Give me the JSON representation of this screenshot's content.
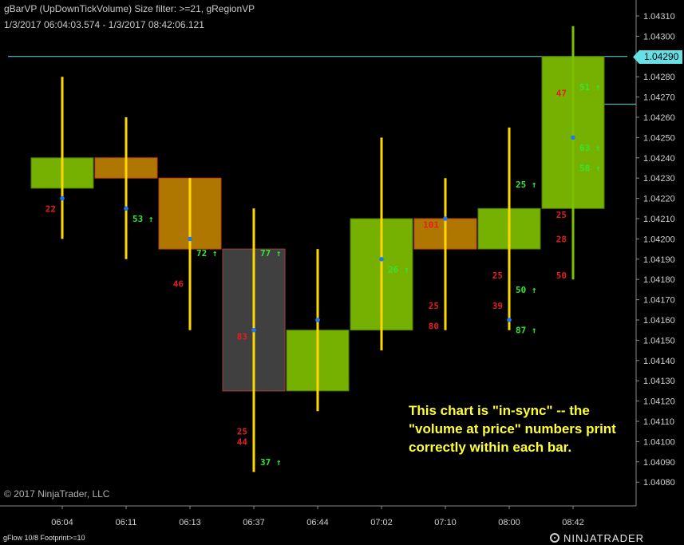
{
  "header": {
    "title": "gBarVP (UpDownTickVolume) Size filter: >=21, gRegionVP",
    "range": "1/3/2017 06:04:03.574 - 1/3/2017 08:42:06.121"
  },
  "copyright": "© 2017 NinjaTrader, LLC",
  "footprint_label": "gFlow 10/8 Footprint>=10",
  "brand": "NINJATRADER",
  "annotation": "This chart is \"in-sync\" -- the \"volume at price\" numbers print correctly within each bar.",
  "current_price": "1.04290",
  "colors": {
    "background": "#000000",
    "up_body": "#76b000",
    "down_body": "#b07700",
    "doji_body": "#404040",
    "wick": "#ffd700",
    "last_wick": "#7cc000",
    "vwap_dot": "#1e78ff",
    "price_line": "#66e0e6",
    "up_volume": "#32e632",
    "down_volume": "#e61e1e",
    "annotation": "#ffff33"
  },
  "chart_data": {
    "type": "candlestick",
    "ylim": [
      1.04075,
      1.0433
    ],
    "y_ticks": [
      "1.04310",
      "1.04300",
      "1.04290",
      "1.04280",
      "1.04270",
      "1.04260",
      "1.04250",
      "1.04240",
      "1.04230",
      "1.04220",
      "1.04210",
      "1.04200",
      "1.04190",
      "1.04180",
      "1.04170",
      "1.04160",
      "1.04150",
      "1.04140",
      "1.04130",
      "1.04120",
      "1.04110",
      "1.04100",
      "1.04090",
      "1.04080"
    ],
    "current_price": 1.0429,
    "bars": [
      {
        "time": "06:04",
        "open": 1.04225,
        "close": 1.0424,
        "high": 1.0428,
        "low": 1.042,
        "dot": 1.0422,
        "volumes": [
          {
            "price": 1.04215,
            "value": "22",
            "dir": "down",
            "arrow": false
          }
        ]
      },
      {
        "time": "06:11",
        "open": 1.0424,
        "close": 1.0423,
        "high": 1.0426,
        "low": 1.0419,
        "dot": 1.04215,
        "volumes": [
          {
            "price": 1.0421,
            "value": "53",
            "dir": "up",
            "arrow": true
          }
        ]
      },
      {
        "time": "06:13",
        "open": 1.0423,
        "close": 1.04195,
        "high": 1.0423,
        "low": 1.04155,
        "dot": 1.042,
        "volumes": [
          {
            "price": 1.04193,
            "value": "72",
            "dir": "up",
            "arrow": true
          },
          {
            "price": 1.04178,
            "value": "46",
            "dir": "down",
            "arrow": false
          }
        ]
      },
      {
        "time": "06:37",
        "open": 1.04195,
        "close": 1.04125,
        "high": 1.04215,
        "low": 1.04085,
        "dot": 1.04155,
        "volumes": [
          {
            "price": 1.04193,
            "value": "77",
            "dir": "up",
            "arrow": true
          },
          {
            "price": 1.04152,
            "value": "83",
            "dir": "down",
            "arrow": false
          },
          {
            "price": 1.04105,
            "value": "25",
            "dir": "down",
            "arrow": false
          },
          {
            "price": 1.041,
            "value": "44",
            "dir": "down",
            "arrow": false
          },
          {
            "price": 1.0409,
            "value": "37",
            "dir": "up",
            "arrow": true
          }
        ]
      },
      {
        "time": "06:44",
        "open": 1.04125,
        "close": 1.04155,
        "high": 1.04195,
        "low": 1.04115,
        "dot": 1.0416,
        "volumes": []
      },
      {
        "time": "07:02",
        "open": 1.04155,
        "close": 1.0421,
        "high": 1.0425,
        "low": 1.04145,
        "dot": 1.0419,
        "volumes": [
          {
            "price": 1.04185,
            "value": "26",
            "dir": "up",
            "arrow": true
          }
        ]
      },
      {
        "time": "07:10",
        "open": 1.0421,
        "close": 1.04195,
        "high": 1.0423,
        "low": 1.04155,
        "dot": 1.0421,
        "volumes": [
          {
            "price": 1.04207,
            "value": "101",
            "dir": "down",
            "arrow": false
          },
          {
            "price": 1.04167,
            "value": "25",
            "dir": "down",
            "arrow": false
          },
          {
            "price": 1.04157,
            "value": "80",
            "dir": "down",
            "arrow": false
          }
        ]
      },
      {
        "time": "08:00",
        "open": 1.04195,
        "close": 1.04215,
        "high": 1.04255,
        "low": 1.04155,
        "dot": 1.0416,
        "volumes": [
          {
            "price": 1.04227,
            "value": "25",
            "dir": "up",
            "arrow": true
          },
          {
            "price": 1.04182,
            "value": "25",
            "dir": "down",
            "arrow": false
          },
          {
            "price": 1.04175,
            "value": "50",
            "dir": "up",
            "arrow": true
          },
          {
            "price": 1.04167,
            "value": "39",
            "dir": "down",
            "arrow": false
          },
          {
            "price": 1.04155,
            "value": "87",
            "dir": "up",
            "arrow": true
          }
        ]
      },
      {
        "time": "08:42",
        "open": 1.04215,
        "close": 1.0429,
        "high": 1.04305,
        "low": 1.0418,
        "dot": 1.0425,
        "volumes": [
          {
            "price": 1.04272,
            "value": "47",
            "dir": "down",
            "arrow": false
          },
          {
            "price": 1.04275,
            "value": "51",
            "dir": "up",
            "arrow": true
          },
          {
            "price": 1.04245,
            "value": "63",
            "dir": "up",
            "arrow": true
          },
          {
            "price": 1.04235,
            "value": "58",
            "dir": "up",
            "arrow": true
          },
          {
            "price": 1.04212,
            "value": "25",
            "dir": "down",
            "arrow": false
          },
          {
            "price": 1.042,
            "value": "28",
            "dir": "down",
            "arrow": false
          },
          {
            "price": 1.04182,
            "value": "50",
            "dir": "down",
            "arrow": false
          }
        ]
      }
    ]
  }
}
